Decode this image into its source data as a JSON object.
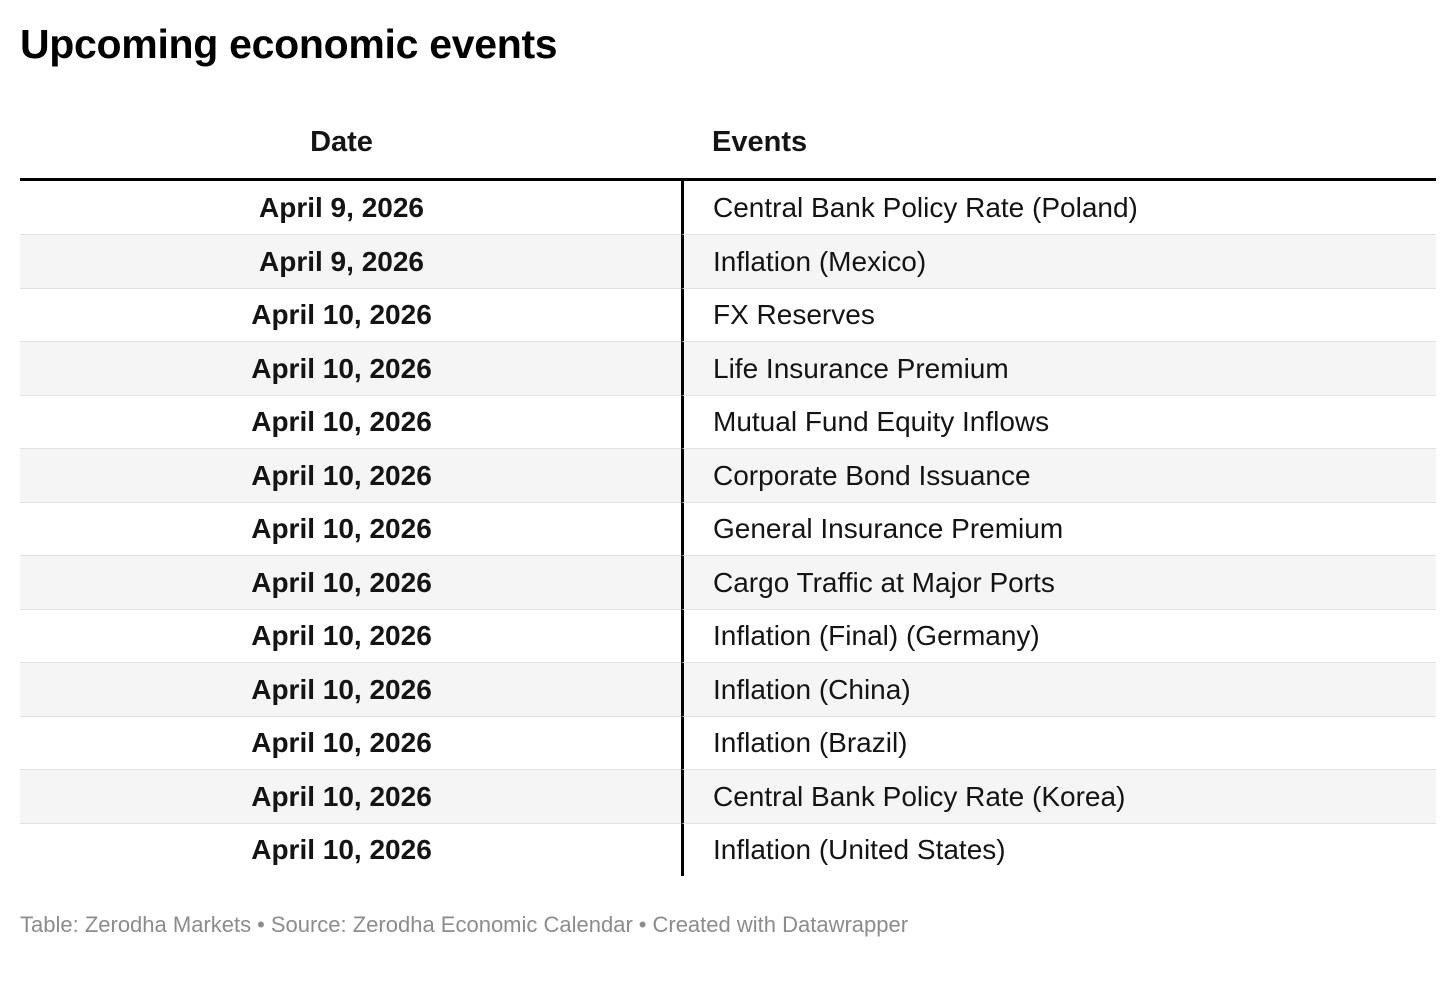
{
  "title": "Upcoming economic events",
  "chart_data": {
    "type": "table",
    "title": "Upcoming economic events",
    "columns": [
      "Date",
      "Events"
    ],
    "rows": [
      [
        "April 9, 2026",
        "Central Bank Policy Rate (Poland)"
      ],
      [
        "April 9, 2026",
        "Inflation (Mexico)"
      ],
      [
        "April 10, 2026",
        "FX Reserves"
      ],
      [
        "April 10, 2026",
        "Life Insurance Premium"
      ],
      [
        "April 10, 2026",
        "Mutual Fund Equity Inflows"
      ],
      [
        "April 10, 2026",
        "Corporate Bond Issuance"
      ],
      [
        "April 10, 2026",
        "General Insurance Premium"
      ],
      [
        "April 10, 2026",
        "Cargo Traffic at Major Ports"
      ],
      [
        "April 10, 2026",
        "Inflation (Final) (Germany)"
      ],
      [
        "April 10, 2026",
        "Inflation (China)"
      ],
      [
        "April 10, 2026",
        "Inflation (Brazil)"
      ],
      [
        "April 10, 2026",
        "Central Bank Policy Rate (Korea)"
      ],
      [
        "April 10, 2026",
        "Inflation (United States)"
      ]
    ],
    "layout": {
      "date_column_align": "center",
      "events_column_align": "left",
      "zebra_striping": true,
      "header_rule": "thick-black",
      "column_divider": "thick-black-vertical"
    }
  },
  "footer": {
    "table_credit": "Table: Zerodha Markets",
    "separator": "•",
    "source_credit": "Source: Zerodha Economic Calendar",
    "created_with": "Created with Datawrapper"
  },
  "colors": {
    "background": "#ffffff",
    "text": "#141414",
    "title_text": "#000000",
    "stripe_row": "#f5f5f5",
    "row_divider": "#e2e2e2",
    "column_divider": "#000000",
    "header_rule": "#000000",
    "footer_text": "#8c8c8c"
  }
}
